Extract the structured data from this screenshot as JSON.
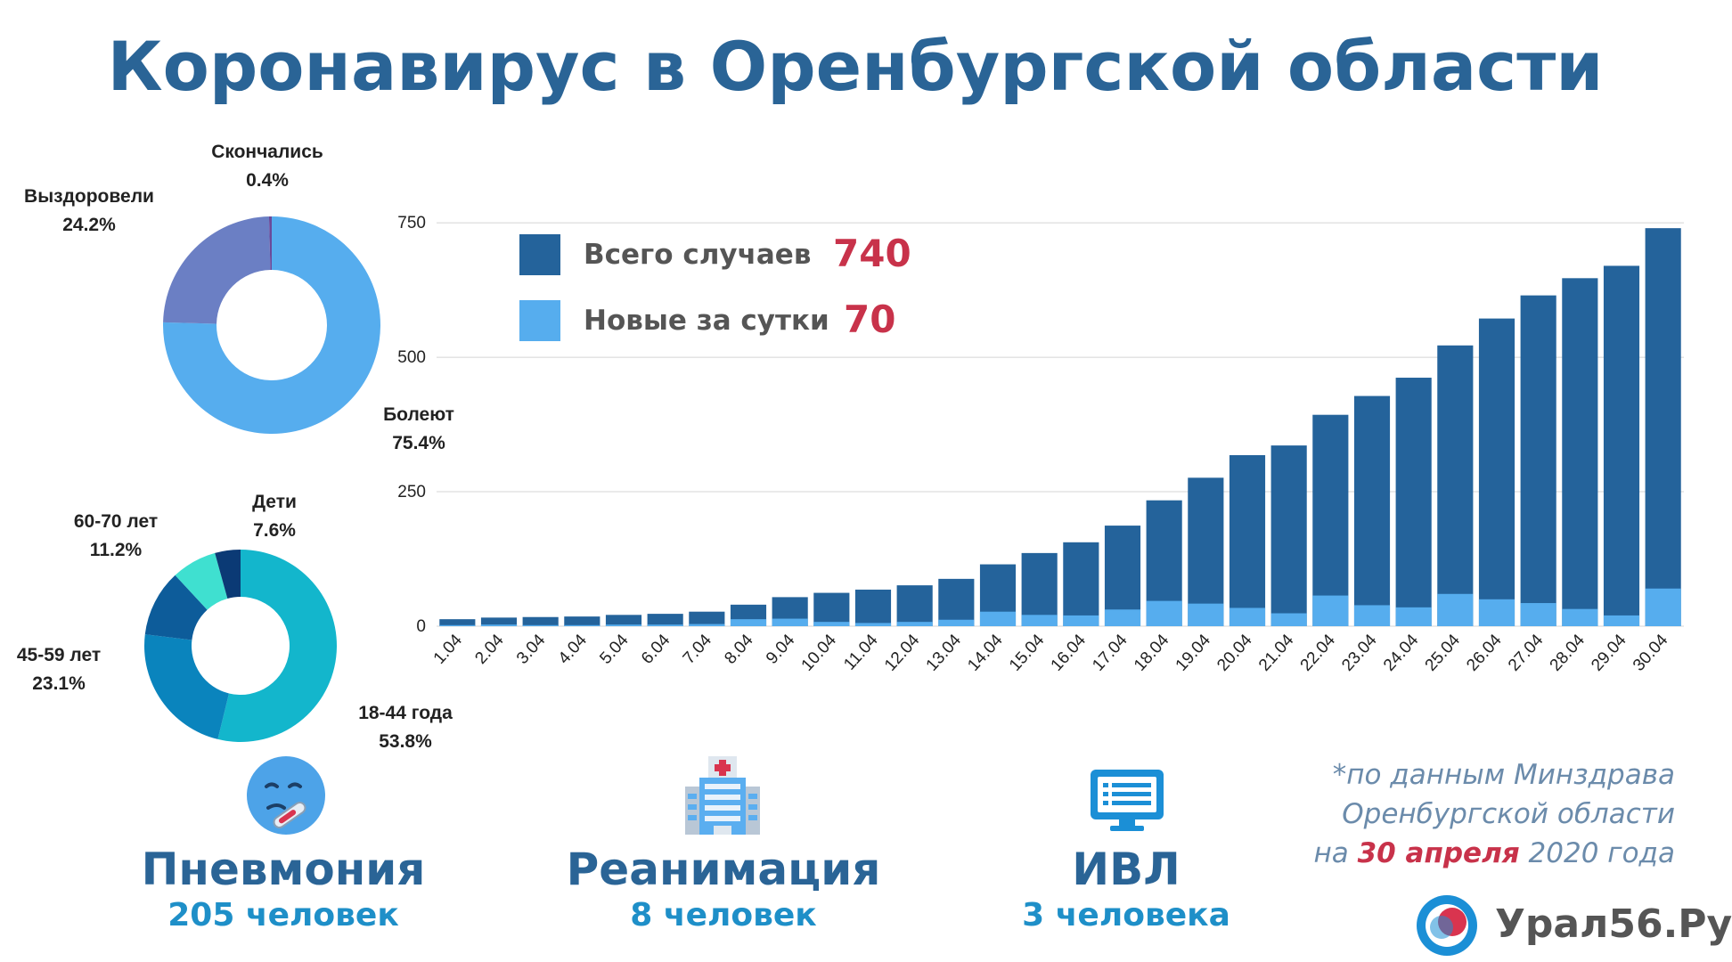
{
  "title": "Коронавирус в Оренбургской области",
  "colors": {
    "title": "#2a6496",
    "total": "#24639b",
    "new": "#56adee",
    "accent": "#c8324a",
    "stat_value": "#1e8fc8"
  },
  "legend": {
    "total_label": "Всего случаев",
    "total_value": "740",
    "new_label": "Новые за сутки",
    "new_value": "70"
  },
  "chart_data": [
    {
      "type": "pie",
      "labels": [
        "Болеют",
        "Выздоровели",
        "Скончались"
      ],
      "values": [
        75.4,
        24.2,
        0.4
      ],
      "display": [
        "75.4%",
        "24.2%",
        "0.4%"
      ],
      "colors": [
        "#56adee",
        "#6b7fc4",
        "#6a4a9a"
      ]
    },
    {
      "type": "pie",
      "labels": [
        "18-44 года",
        "45-59 лет",
        "60-70 лет",
        "Дети"
      ],
      "values": [
        53.8,
        23.1,
        11.2,
        7.6
      ],
      "display": [
        "53.8%",
        "23.1%",
        "11.2%",
        "7.6%"
      ],
      "colors": [
        "#13b6cc",
        "#0a84bd",
        "#0d5c9a",
        "#3fe0d0"
      ],
      "unlabeled_remainder_color": "#0b3a75"
    },
    {
      "type": "bar",
      "categories": [
        "1.04",
        "2.04",
        "3.04",
        "4.04",
        "5.04",
        "6.04",
        "7.04",
        "8.04",
        "9.04",
        "10.04",
        "11.04",
        "12.04",
        "13.04",
        "14.04",
        "15.04",
        "16.04",
        "17.04",
        "18.04",
        "19.04",
        "20.04",
        "21.04",
        "22.04",
        "23.04",
        "24.04",
        "25.04",
        "26.04",
        "27.04",
        "28.04",
        "29.04",
        "30.04"
      ],
      "series": [
        {
          "name": "Всего случаев",
          "values": [
            13,
            16,
            17,
            18,
            21,
            23,
            27,
            40,
            54,
            62,
            68,
            76,
            88,
            115,
            136,
            156,
            187,
            234,
            276,
            318,
            336,
            393,
            428,
            462,
            522,
            572,
            615,
            647,
            670,
            740
          ]
        },
        {
          "name": "Новые за сутки",
          "values": [
            2,
            3,
            2,
            2,
            3,
            3,
            4,
            13,
            14,
            8,
            6,
            8,
            12,
            27,
            21,
            20,
            31,
            47,
            42,
            34,
            24,
            57,
            39,
            35,
            60,
            50,
            43,
            32,
            20,
            70
          ]
        }
      ],
      "yticks": [
        "0",
        "250",
        "500",
        "750"
      ],
      "ylim": [
        0,
        780
      ],
      "grid": true
    }
  ],
  "stats": [
    {
      "title": "Пневмония",
      "value": "205 человек",
      "icon": "thermometer-face-icon"
    },
    {
      "title": "Реанимация",
      "value": "8 человек",
      "icon": "hospital-icon"
    },
    {
      "title": "ИВЛ",
      "value": "3 человека",
      "icon": "monitor-icon"
    }
  ],
  "source": {
    "line1": "*по данным Минздрава",
    "line2": "Оренбургской области",
    "line3_prefix": "на ",
    "line3_highlight": "30 апреля",
    "line3_suffix": " 2020 года"
  },
  "brand": {
    "name": "Урал56.Ру"
  }
}
